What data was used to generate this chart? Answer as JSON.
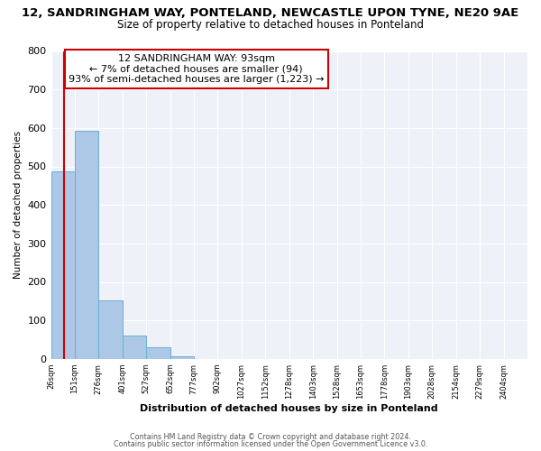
{
  "title_line1": "12, SANDRINGHAM WAY, PONTELAND, NEWCASTLE UPON TYNE, NE20 9AE",
  "title_line2": "Size of property relative to detached houses in Ponteland",
  "xlabel": "Distribution of detached houses by size in Ponteland",
  "ylabel": "Number of detached properties",
  "bar_edges": [
    26,
    151,
    276,
    401,
    527,
    652,
    777,
    902,
    1027,
    1152,
    1278,
    1403,
    1528,
    1653,
    1778,
    1903,
    2028,
    2154,
    2279,
    2404,
    2529
  ],
  "bar_heights": [
    487,
    592,
    152,
    61,
    30,
    6,
    0,
    0,
    0,
    0,
    0,
    0,
    0,
    0,
    0,
    0,
    0,
    0,
    0,
    0
  ],
  "bar_color": "#adc8e6",
  "bar_edge_color": "#6aaed6",
  "annotation_box_color": "#ffffff",
  "annotation_border_color": "#cc0000",
  "annotation_text_line1": "12 SANDRINGHAM WAY: 93sqm",
  "annotation_text_line2": "← 7% of detached houses are smaller (94)",
  "annotation_text_line3": "93% of semi-detached houses are larger (1,223) →",
  "vline_x": 93,
  "ylim": [
    0,
    800
  ],
  "yticks": [
    0,
    100,
    200,
    300,
    400,
    500,
    600,
    700,
    800
  ],
  "bg_color": "#eef2f8",
  "footer_line1": "Contains HM Land Registry data © Crown copyright and database right 2024.",
  "footer_line2": "Contains public sector information licensed under the Open Government Licence v3.0."
}
